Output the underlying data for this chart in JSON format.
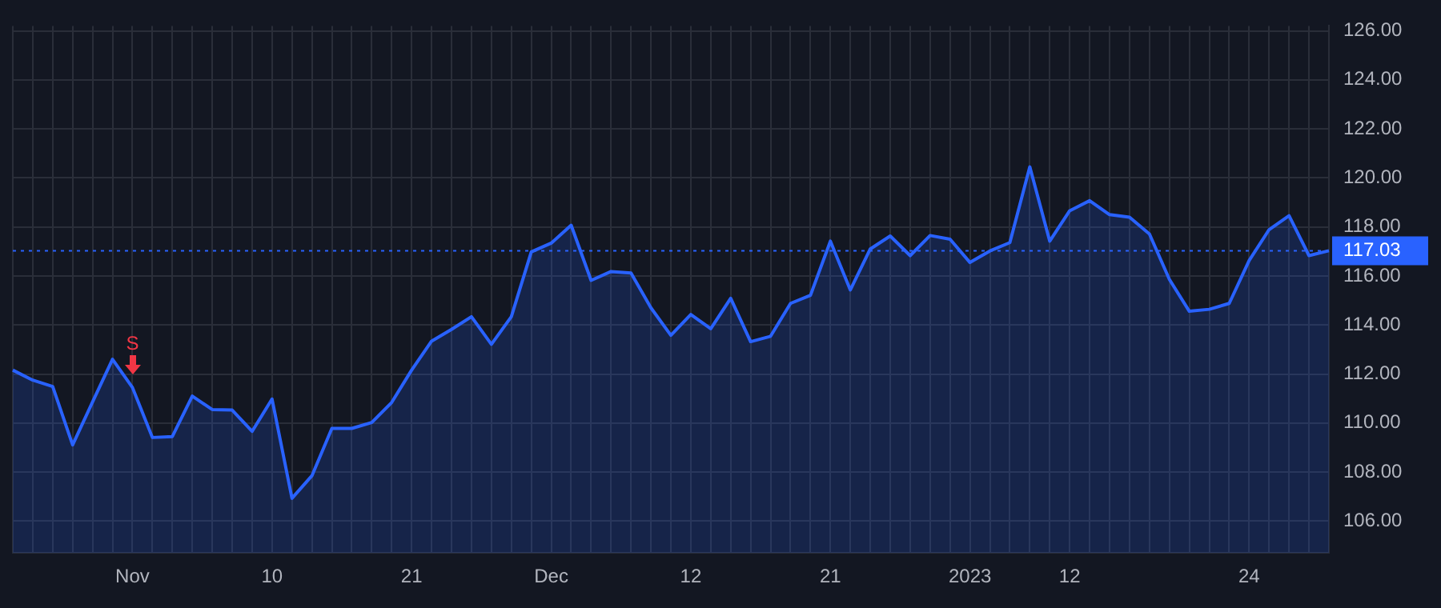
{
  "chart_data": {
    "type": "area",
    "categories": [
      null,
      null,
      null,
      null,
      null,
      null,
      "Nov",
      null,
      null,
      null,
      null,
      null,
      null,
      "10",
      null,
      null,
      null,
      null,
      null,
      null,
      "21",
      null,
      null,
      null,
      null,
      null,
      null,
      "Dec",
      null,
      null,
      null,
      null,
      null,
      null,
      "12",
      null,
      null,
      null,
      null,
      null,
      null,
      "21",
      null,
      null,
      null,
      null,
      null,
      null,
      "2023",
      null,
      null,
      null,
      null,
      "12",
      null,
      null,
      null,
      null,
      null,
      null,
      null,
      null,
      "24",
      null,
      null,
      null,
      null
    ],
    "series": [
      {
        "color": "#2962ff",
        "values": [
          112.16,
          111.75,
          111.49,
          109.11,
          110.86,
          112.6,
          111.45,
          109.41,
          109.45,
          111.1,
          110.55,
          110.53,
          109.66,
          110.98,
          106.93,
          107.85,
          109.78,
          109.78,
          110.02,
          110.84,
          112.16,
          113.34,
          113.82,
          114.34,
          113.21,
          114.34,
          116.98,
          117.34,
          118.07,
          115.82,
          116.18,
          116.12,
          114.7,
          113.58,
          114.43,
          113.85,
          115.09,
          113.32,
          113.54,
          114.88,
          115.21,
          117.42,
          115.43,
          117.1,
          117.63,
          116.83,
          117.65,
          117.5,
          116.55,
          117.02,
          117.36,
          120.45,
          117.42,
          118.66,
          119.07,
          118.5,
          118.4,
          117.71,
          115.86,
          114.56,
          114.64,
          114.88,
          116.63,
          117.89,
          118.46,
          116.83,
          117.03
        ]
      }
    ],
    "ylim": [
      104.7,
      126.2
    ],
    "yticks": [
      {
        "value": 106,
        "label": "106.00"
      },
      {
        "value": 108,
        "label": "108.00"
      },
      {
        "value": 110,
        "label": "110.00"
      },
      {
        "value": 112,
        "label": "112.00"
      },
      {
        "value": 114,
        "label": "114.00"
      },
      {
        "value": 116,
        "label": "116.00"
      },
      {
        "value": 118,
        "label": "118.00"
      },
      {
        "value": 120,
        "label": "120.00"
      },
      {
        "value": 122,
        "label": "122.00"
      },
      {
        "value": 124,
        "label": "124.00"
      },
      {
        "value": 126,
        "label": "126.00"
      }
    ],
    "ref_lines": [
      {
        "axis": "y",
        "value": 117.03,
        "label": "117.03",
        "color": "#2962ff",
        "line_style": "dotted"
      }
    ],
    "annotations": [
      {
        "text": "S",
        "x": "Nov",
        "y": 111.9
      }
    ],
    "grid": true,
    "legend": false,
    "marker": "none",
    "line_style": "solid"
  }
}
